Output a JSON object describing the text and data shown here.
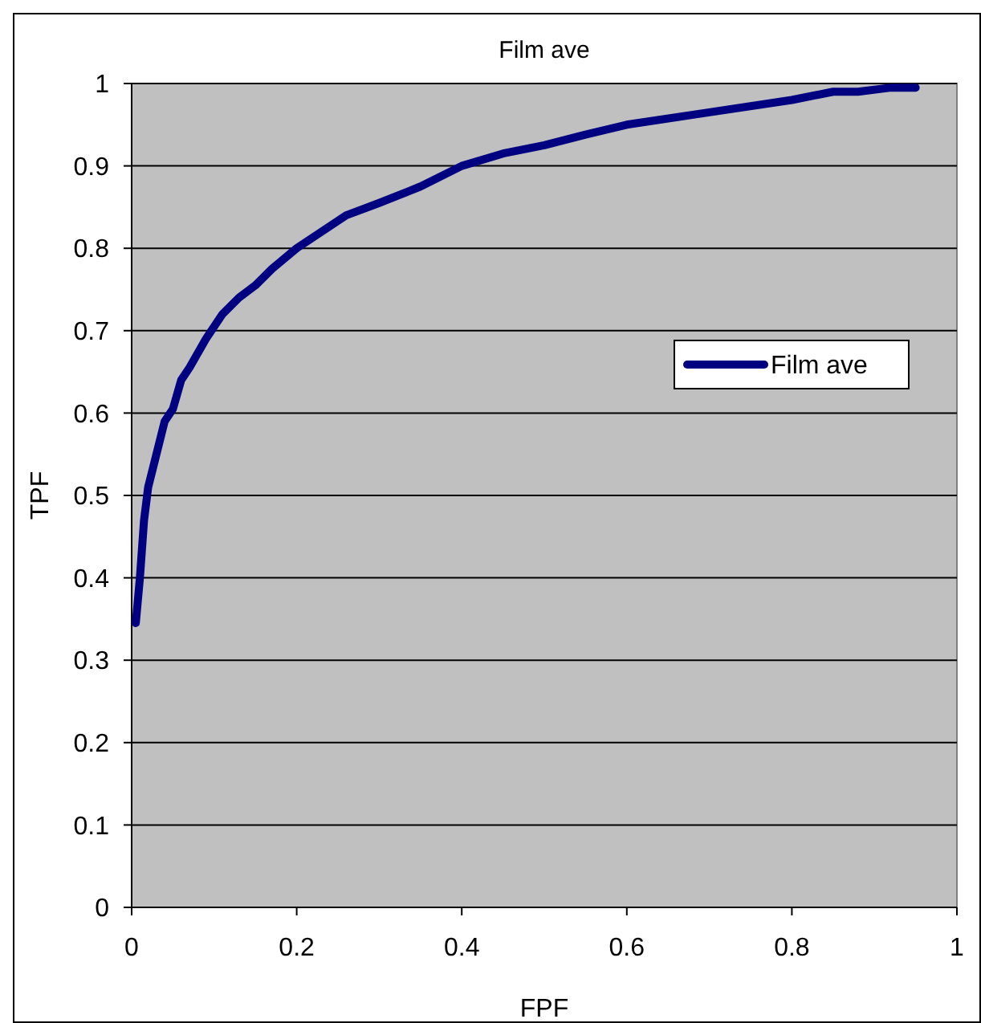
{
  "chart_data": {
    "type": "line",
    "title": "Film ave",
    "xlabel": "FPF",
    "ylabel": "TPF",
    "xlim": [
      0,
      1
    ],
    "xticks": [
      0,
      0.2,
      0.4,
      0.6,
      0.8,
      1
    ],
    "ylim": [
      0,
      1
    ],
    "yticks": [
      0,
      0.1,
      0.2,
      0.3,
      0.4,
      0.5,
      0.6,
      0.7,
      0.8,
      0.9,
      1
    ],
    "grid": "y",
    "legend": "right",
    "marker": "none",
    "line_style": "solid",
    "series": [
      {
        "name": "Film ave",
        "color": "#000080",
        "x": [
          0.005,
          0.01,
          0.015,
          0.02,
          0.03,
          0.04,
          0.05,
          0.06,
          0.07,
          0.09,
          0.11,
          0.13,
          0.15,
          0.17,
          0.2,
          0.23,
          0.26,
          0.3,
          0.35,
          0.4,
          0.45,
          0.5,
          0.55,
          0.6,
          0.7,
          0.8,
          0.85,
          0.88,
          0.92,
          0.95
        ],
        "values": [
          0.345,
          0.4,
          0.47,
          0.51,
          0.55,
          0.59,
          0.605,
          0.64,
          0.655,
          0.69,
          0.72,
          0.74,
          0.755,
          0.775,
          0.8,
          0.82,
          0.84,
          0.855,
          0.875,
          0.9,
          0.915,
          0.925,
          0.938,
          0.95,
          0.965,
          0.98,
          0.99,
          0.99,
          0.995,
          0.995
        ]
      }
    ]
  }
}
